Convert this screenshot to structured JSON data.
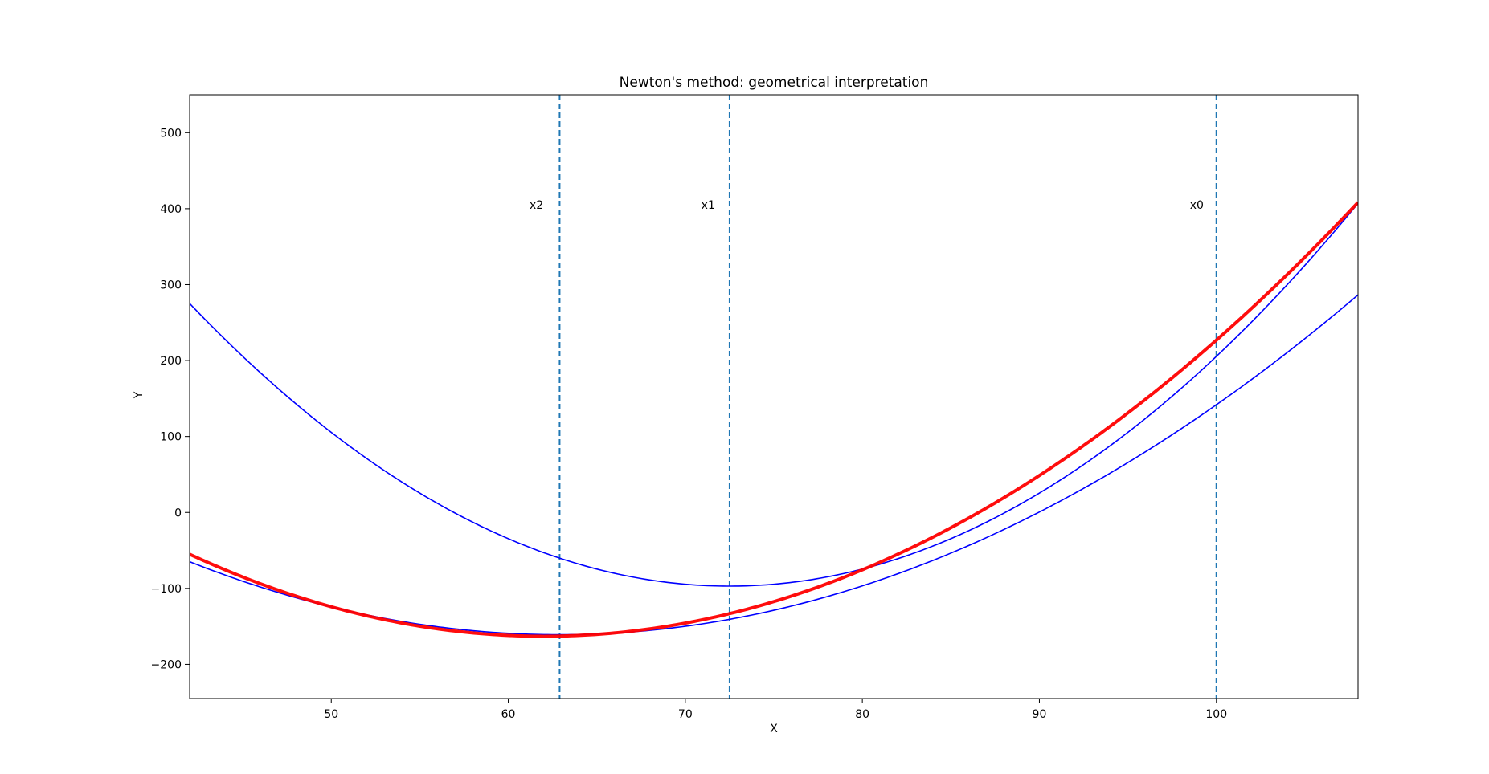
{
  "chart_data": {
    "type": "line",
    "title": "Newton's method: geometrical interpretation",
    "xlabel": "X",
    "ylabel": "Y",
    "xlim": [
      42,
      108
    ],
    "ylim": [
      -245,
      550
    ],
    "xticks": [
      50,
      60,
      70,
      80,
      90,
      100
    ],
    "yticks": [
      -200,
      -100,
      0,
      100,
      200,
      300,
      400,
      500
    ],
    "ytick_labels": [
      "−200",
      "−100",
      "0",
      "100",
      "200",
      "300",
      "400",
      "500"
    ],
    "grid": false,
    "series": [
      {
        "role": "function",
        "color": "#ff0000",
        "quadratic": {
          "vertex_x": 62,
          "vertex_y": -163,
          "a": 0.27
        },
        "x_range": [
          42,
          108
        ]
      },
      {
        "role": "tangent-parabola",
        "color": "#0000ff",
        "quadratic": {
          "vertex_x": 72.5,
          "vertex_y": -97,
          "a": 0.4
        },
        "x_range": [
          42,
          108
        ]
      },
      {
        "role": "tangent-parabola",
        "color": "#0000ff",
        "quadratic": {
          "vertex_x": 62.9,
          "vertex_y": -161,
          "a": 0.22
        },
        "x_range": [
          42,
          108
        ]
      }
    ],
    "vertical_lines": [
      {
        "x": 62.9,
        "color": "#1f77b4",
        "style": "dashed"
      },
      {
        "x": 72.5,
        "color": "#1f77b4",
        "style": "dashed"
      },
      {
        "x": 100,
        "color": "#1f77b4",
        "style": "dashed"
      }
    ],
    "annotations": [
      {
        "text": "x2",
        "x": 61.2,
        "y": 400
      },
      {
        "text": "x1",
        "x": 70.9,
        "y": 400
      },
      {
        "text": "x0",
        "x": 98.5,
        "y": 400
      }
    ]
  }
}
